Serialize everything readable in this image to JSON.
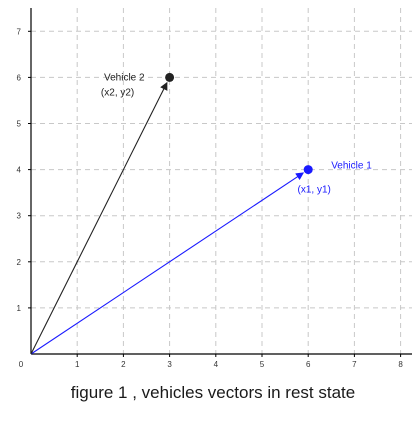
{
  "figure": {
    "caption": "figure 1 , vehicles vectors in rest state",
    "x_ticks": [
      "0",
      "1",
      "2",
      "3",
      "4",
      "5",
      "6",
      "7",
      "8"
    ],
    "y_ticks": [
      "1",
      "2",
      "3",
      "4",
      "5",
      "6",
      "7"
    ],
    "xlim": [
      0,
      8
    ],
    "ylim": [
      0,
      7
    ],
    "grid": true,
    "origin": [
      0,
      0
    ],
    "colors": {
      "vehicle1": "#1a1aff",
      "vehicle2": "#222222",
      "grid": "#c8c8c8"
    }
  },
  "vectors": [
    {
      "id": "vehicle1",
      "name": "Vehicle 1",
      "coord_label": "(x1, y1)",
      "x": 6,
      "y": 4,
      "color": "#1a1aff"
    },
    {
      "id": "vehicle2",
      "name": "Vehicle 2",
      "coord_label": "(x2, y2)",
      "x": 3,
      "y": 6,
      "color": "#222222"
    }
  ]
}
